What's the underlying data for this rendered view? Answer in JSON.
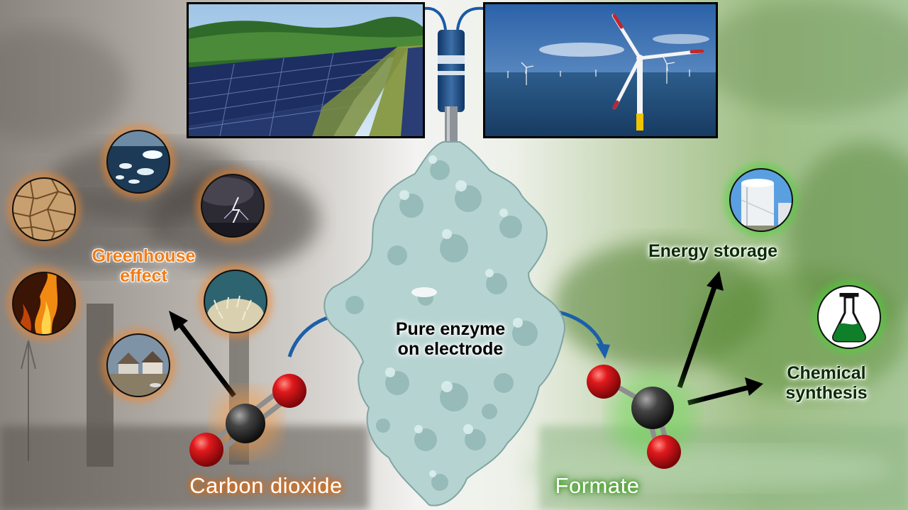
{
  "labels": {
    "greenhouse": "Greenhouse\neffect",
    "greenhouse_line1": "Greenhouse",
    "greenhouse_line2": "effect",
    "enzyme_line1": "Pure enzyme",
    "enzyme_line2": "on electrode",
    "energy_storage": "Energy storage",
    "chemical_line1": "Chemical",
    "chemical_line2": "synthesis",
    "carbon_dioxide": "Carbon dioxide",
    "formate": "Formate"
  },
  "climate_icons": [
    "melting-ice-icon",
    "drought-icon",
    "storm-icon",
    "wildfire-icon",
    "coral-bleaching-icon",
    "flood-icon"
  ],
  "application_icons": [
    "storage-tank-icon",
    "chemical-flask-icon"
  ],
  "colors": {
    "greenhouse_orange": "#f07d18",
    "carbon_glow": "#e0731a",
    "formate_glow": "#3e9a22",
    "enzyme_surface": "#b7d4d3",
    "oxygen_red": "#d3141a",
    "carbon_gray": "#3d3d3d",
    "arrow_blue": "#1b5fa8"
  }
}
